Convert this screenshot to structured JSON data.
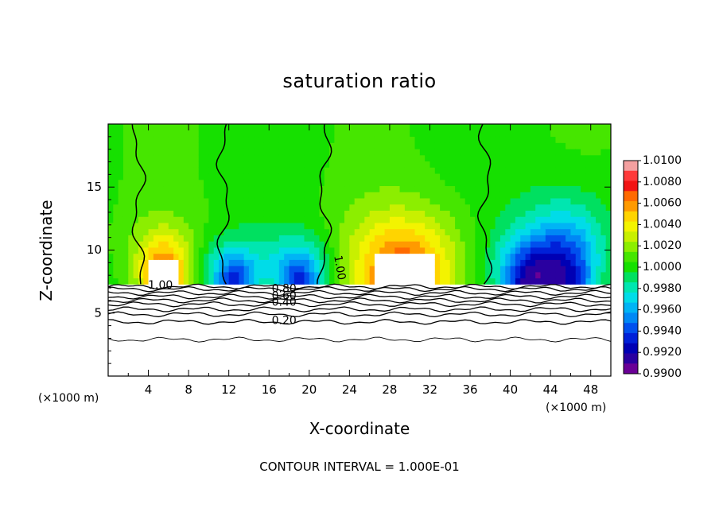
{
  "chart_data": {
    "type": "heatmap",
    "title": "saturation ratio",
    "xlabel": "X-coordinate",
    "ylabel": "Z-coordinate",
    "x_unit_label": "(×1000 m)",
    "xlim": [
      0,
      50
    ],
    "ylim": [
      0,
      20
    ],
    "x_ticks": [
      4,
      8,
      12,
      16,
      20,
      24,
      28,
      32,
      36,
      40,
      44,
      48
    ],
    "y_ticks": [
      5,
      10,
      15
    ],
    "colorbar": {
      "min": 0.99,
      "max": 1.01,
      "tick_labels": [
        "1.0100",
        "1.0080",
        "1.0060",
        "1.0040",
        "1.0020",
        "1.0000",
        "0.9980",
        "0.9960",
        "0.9940",
        "0.9920",
        "0.9900"
      ],
      "colors": [
        "#f4a0a0",
        "#ff3a3a",
        "#f21414",
        "#ff6a00",
        "#ff9a00",
        "#ffd400",
        "#f3f300",
        "#c8f000",
        "#8cee00",
        "#46e600",
        "#16e000",
        "#00e060",
        "#00e6b0",
        "#00dce8",
        "#00b4f5",
        "#0088f5",
        "#0050ee",
        "#0020d8",
        "#0000b4",
        "#2a00a0",
        "#6a0096"
      ]
    },
    "cloud_base_z": 7.3,
    "contour_labels": [
      "1.00",
      "0.80",
      "0.60",
      "0.40",
      "0.20",
      "1.00"
    ],
    "contour_levels": [
      1.0,
      0.9,
      0.8,
      0.7,
      0.6,
      0.5,
      0.4,
      0.3,
      0.2,
      0.1
    ],
    "lower_contour_z": [
      7.1,
      6.9,
      6.6,
      6.3,
      6.0,
      5.7,
      5.3,
      4.9,
      4.3,
      2.9
    ],
    "plumes": [
      {
        "x": 5.5,
        "width": 2.2,
        "top": 11.6,
        "value": 1.0075
      },
      {
        "x": 12.5,
        "width": 2.3,
        "top": 10.5,
        "value": 0.9935
      },
      {
        "x": 19.0,
        "width": 2.3,
        "top": 10.8,
        "value": 0.9935
      },
      {
        "x": 29.5,
        "width": 4.6,
        "top": 13.0,
        "value": 1.008
      },
      {
        "x": 41.5,
        "width": 2.5,
        "top": 11.0,
        "value": 0.993
      },
      {
        "x": 45.5,
        "width": 3.0,
        "top": 13.5,
        "value": 0.992
      }
    ],
    "vertical_contours_x": [
      3.0,
      11.5,
      21.5,
      37.5
    ],
    "contour_interval_text": "CONTOUR INTERVAL = 1.000E-01"
  }
}
